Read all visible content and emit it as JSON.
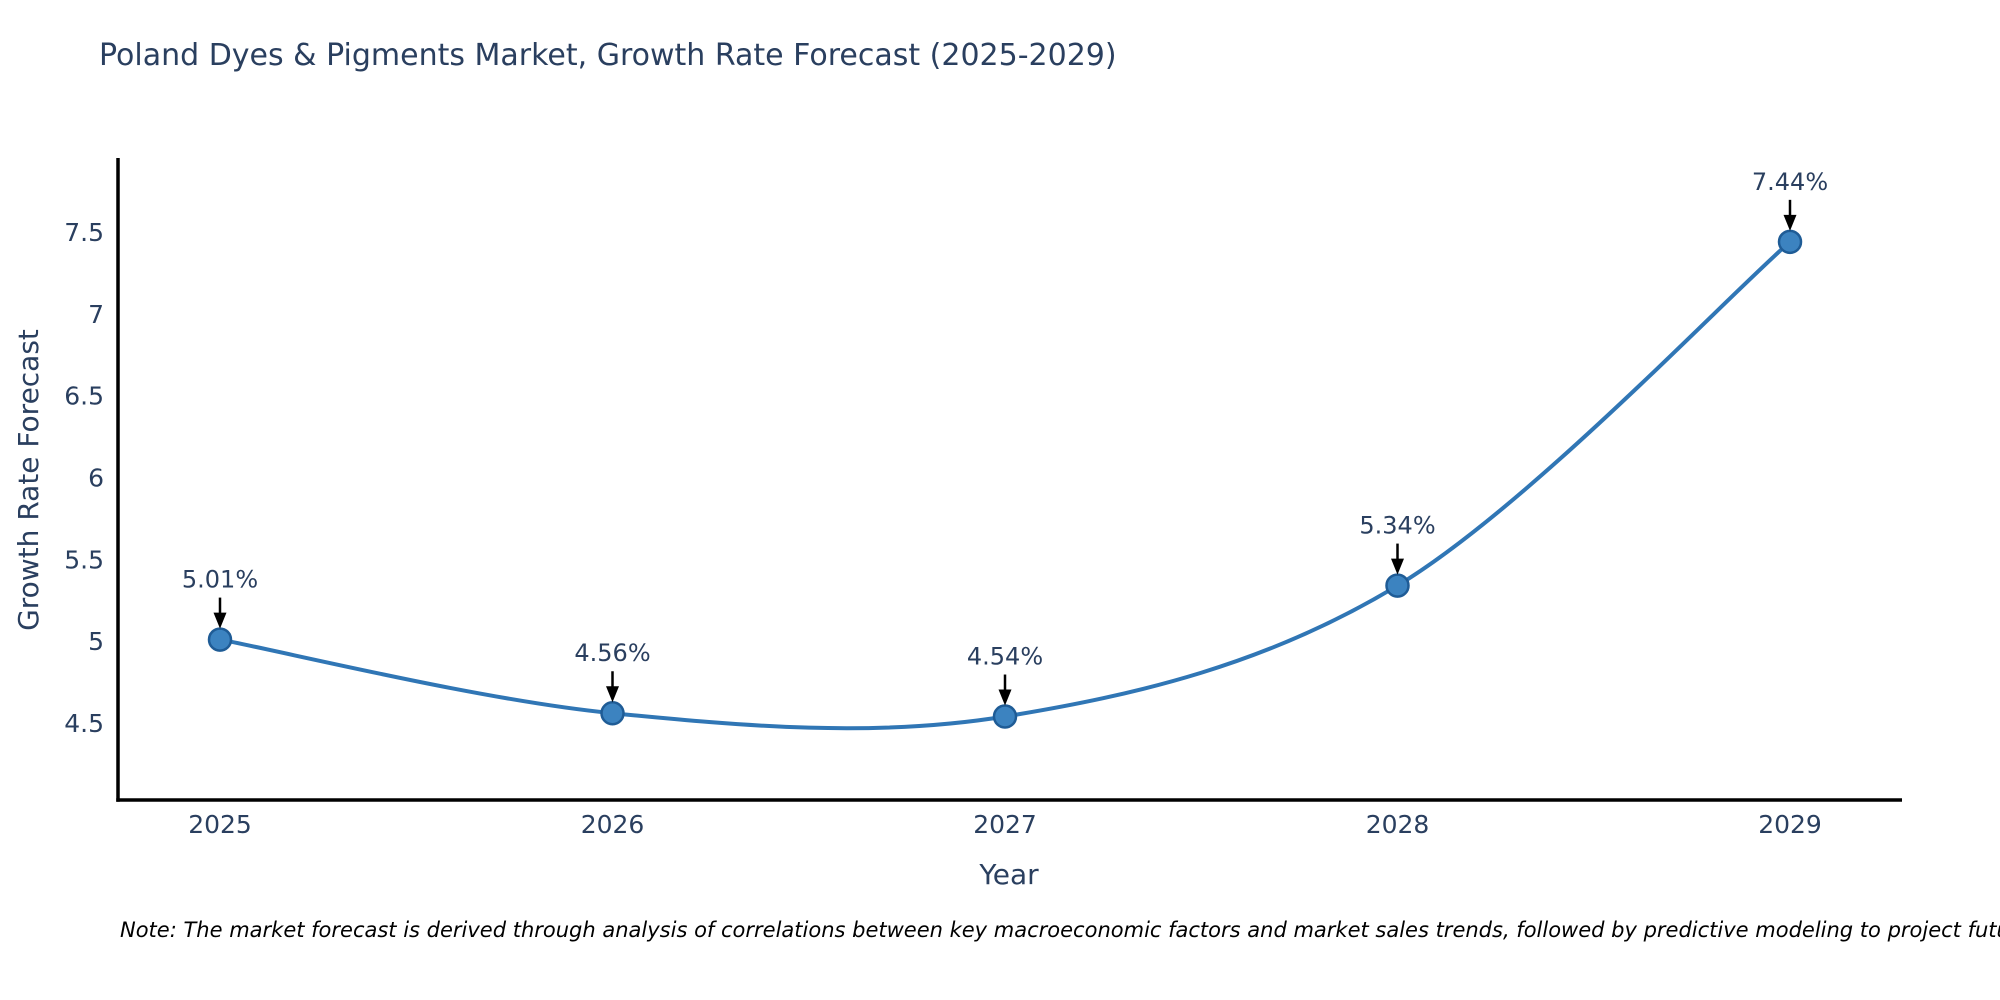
{
  "chart_data": {
    "type": "line",
    "title": "Poland Dyes & Pigments Market, Growth Rate Forecast (2025-2029)",
    "xlabel": "Year",
    "ylabel": "Growth Rate Forecast",
    "x": [
      "2025",
      "2026",
      "2027",
      "2028",
      "2029"
    ],
    "values": [
      5.01,
      4.56,
      4.54,
      5.34,
      7.44
    ],
    "point_labels": [
      "5.01%",
      "4.56%",
      "4.54%",
      "5.34%",
      "7.44%"
    ],
    "yticks": [
      4.5,
      5,
      5.5,
      6,
      6.5,
      7,
      7.5
    ],
    "ylim": [
      4.03,
      7.94
    ],
    "grid": false,
    "legend": "none",
    "line_shape": "spline",
    "line_color": "#3076b5",
    "marker_color": "#3c83c0",
    "marker_edge_color": "#1f5c96",
    "axis_color": "#000000",
    "text_color": "#2a3f5f",
    "annotation_arrow_color": "#000000",
    "note": "Note: The market forecast is derived through analysis of correlations between key macroeconomic factors and market sales trends, followed by predictive modeling to project future sales"
  }
}
